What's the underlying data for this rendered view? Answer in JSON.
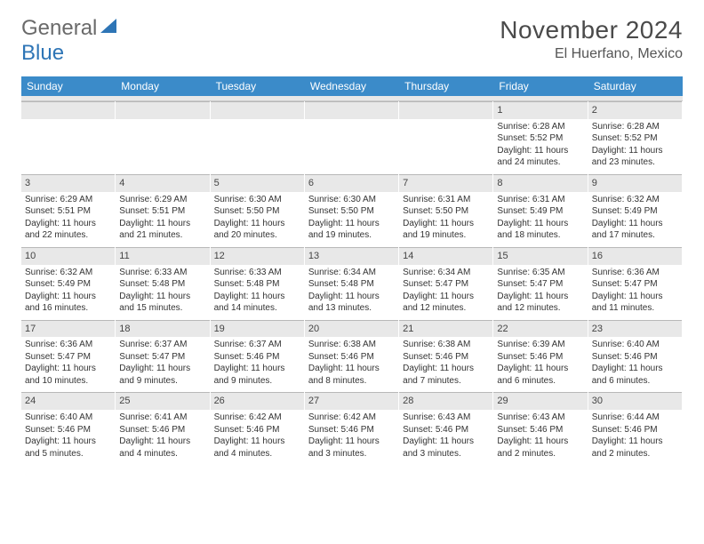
{
  "logo": {
    "text1": "General",
    "text2": "Blue"
  },
  "title": "November 2024",
  "location": "El Huerfano, Mexico",
  "weekdays": [
    "Sunday",
    "Monday",
    "Tuesday",
    "Wednesday",
    "Thursday",
    "Friday",
    "Saturday"
  ],
  "colors": {
    "header_bg": "#3b8bc9",
    "daynum_bg": "#e8e8e8",
    "border": "#b8b8b8",
    "text": "#333333",
    "logo_gray": "#6a6a6a",
    "logo_blue": "#2e75b6"
  },
  "weeks": [
    [
      {
        "n": "",
        "sr": "",
        "ss": "",
        "dl": ""
      },
      {
        "n": "",
        "sr": "",
        "ss": "",
        "dl": ""
      },
      {
        "n": "",
        "sr": "",
        "ss": "",
        "dl": ""
      },
      {
        "n": "",
        "sr": "",
        "ss": "",
        "dl": ""
      },
      {
        "n": "",
        "sr": "",
        "ss": "",
        "dl": ""
      },
      {
        "n": "1",
        "sr": "Sunrise: 6:28 AM",
        "ss": "Sunset: 5:52 PM",
        "dl": "Daylight: 11 hours and 24 minutes."
      },
      {
        "n": "2",
        "sr": "Sunrise: 6:28 AM",
        "ss": "Sunset: 5:52 PM",
        "dl": "Daylight: 11 hours and 23 minutes."
      }
    ],
    [
      {
        "n": "3",
        "sr": "Sunrise: 6:29 AM",
        "ss": "Sunset: 5:51 PM",
        "dl": "Daylight: 11 hours and 22 minutes."
      },
      {
        "n": "4",
        "sr": "Sunrise: 6:29 AM",
        "ss": "Sunset: 5:51 PM",
        "dl": "Daylight: 11 hours and 21 minutes."
      },
      {
        "n": "5",
        "sr": "Sunrise: 6:30 AM",
        "ss": "Sunset: 5:50 PM",
        "dl": "Daylight: 11 hours and 20 minutes."
      },
      {
        "n": "6",
        "sr": "Sunrise: 6:30 AM",
        "ss": "Sunset: 5:50 PM",
        "dl": "Daylight: 11 hours and 19 minutes."
      },
      {
        "n": "7",
        "sr": "Sunrise: 6:31 AM",
        "ss": "Sunset: 5:50 PM",
        "dl": "Daylight: 11 hours and 19 minutes."
      },
      {
        "n": "8",
        "sr": "Sunrise: 6:31 AM",
        "ss": "Sunset: 5:49 PM",
        "dl": "Daylight: 11 hours and 18 minutes."
      },
      {
        "n": "9",
        "sr": "Sunrise: 6:32 AM",
        "ss": "Sunset: 5:49 PM",
        "dl": "Daylight: 11 hours and 17 minutes."
      }
    ],
    [
      {
        "n": "10",
        "sr": "Sunrise: 6:32 AM",
        "ss": "Sunset: 5:49 PM",
        "dl": "Daylight: 11 hours and 16 minutes."
      },
      {
        "n": "11",
        "sr": "Sunrise: 6:33 AM",
        "ss": "Sunset: 5:48 PM",
        "dl": "Daylight: 11 hours and 15 minutes."
      },
      {
        "n": "12",
        "sr": "Sunrise: 6:33 AM",
        "ss": "Sunset: 5:48 PM",
        "dl": "Daylight: 11 hours and 14 minutes."
      },
      {
        "n": "13",
        "sr": "Sunrise: 6:34 AM",
        "ss": "Sunset: 5:48 PM",
        "dl": "Daylight: 11 hours and 13 minutes."
      },
      {
        "n": "14",
        "sr": "Sunrise: 6:34 AM",
        "ss": "Sunset: 5:47 PM",
        "dl": "Daylight: 11 hours and 12 minutes."
      },
      {
        "n": "15",
        "sr": "Sunrise: 6:35 AM",
        "ss": "Sunset: 5:47 PM",
        "dl": "Daylight: 11 hours and 12 minutes."
      },
      {
        "n": "16",
        "sr": "Sunrise: 6:36 AM",
        "ss": "Sunset: 5:47 PM",
        "dl": "Daylight: 11 hours and 11 minutes."
      }
    ],
    [
      {
        "n": "17",
        "sr": "Sunrise: 6:36 AM",
        "ss": "Sunset: 5:47 PM",
        "dl": "Daylight: 11 hours and 10 minutes."
      },
      {
        "n": "18",
        "sr": "Sunrise: 6:37 AM",
        "ss": "Sunset: 5:47 PM",
        "dl": "Daylight: 11 hours and 9 minutes."
      },
      {
        "n": "19",
        "sr": "Sunrise: 6:37 AM",
        "ss": "Sunset: 5:46 PM",
        "dl": "Daylight: 11 hours and 9 minutes."
      },
      {
        "n": "20",
        "sr": "Sunrise: 6:38 AM",
        "ss": "Sunset: 5:46 PM",
        "dl": "Daylight: 11 hours and 8 minutes."
      },
      {
        "n": "21",
        "sr": "Sunrise: 6:38 AM",
        "ss": "Sunset: 5:46 PM",
        "dl": "Daylight: 11 hours and 7 minutes."
      },
      {
        "n": "22",
        "sr": "Sunrise: 6:39 AM",
        "ss": "Sunset: 5:46 PM",
        "dl": "Daylight: 11 hours and 6 minutes."
      },
      {
        "n": "23",
        "sr": "Sunrise: 6:40 AM",
        "ss": "Sunset: 5:46 PM",
        "dl": "Daylight: 11 hours and 6 minutes."
      }
    ],
    [
      {
        "n": "24",
        "sr": "Sunrise: 6:40 AM",
        "ss": "Sunset: 5:46 PM",
        "dl": "Daylight: 11 hours and 5 minutes."
      },
      {
        "n": "25",
        "sr": "Sunrise: 6:41 AM",
        "ss": "Sunset: 5:46 PM",
        "dl": "Daylight: 11 hours and 4 minutes."
      },
      {
        "n": "26",
        "sr": "Sunrise: 6:42 AM",
        "ss": "Sunset: 5:46 PM",
        "dl": "Daylight: 11 hours and 4 minutes."
      },
      {
        "n": "27",
        "sr": "Sunrise: 6:42 AM",
        "ss": "Sunset: 5:46 PM",
        "dl": "Daylight: 11 hours and 3 minutes."
      },
      {
        "n": "28",
        "sr": "Sunrise: 6:43 AM",
        "ss": "Sunset: 5:46 PM",
        "dl": "Daylight: 11 hours and 3 minutes."
      },
      {
        "n": "29",
        "sr": "Sunrise: 6:43 AM",
        "ss": "Sunset: 5:46 PM",
        "dl": "Daylight: 11 hours and 2 minutes."
      },
      {
        "n": "30",
        "sr": "Sunrise: 6:44 AM",
        "ss": "Sunset: 5:46 PM",
        "dl": "Daylight: 11 hours and 2 minutes."
      }
    ]
  ]
}
